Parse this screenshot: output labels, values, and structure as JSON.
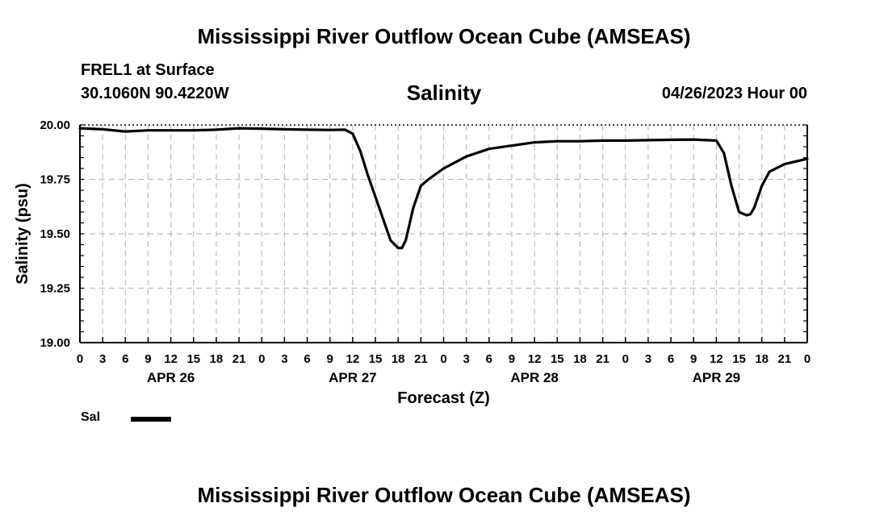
{
  "header": {
    "title": "Mississippi River Outflow Ocean Cube (AMSEAS)",
    "station": "FREL1 at Surface",
    "coords": "30.1060N  90.4220W",
    "subtitle": "Salinity",
    "datetime": "04/26/2023 Hour 00"
  },
  "footer": {
    "title": "Mississippi River Outflow Ocean Cube (AMSEAS)"
  },
  "chart_data": {
    "type": "line",
    "title": "Salinity",
    "xlabel": "Forecast (Z)",
    "ylabel": "Salinity (psu)",
    "ylim": [
      19.0,
      20.0
    ],
    "yticks": [
      "19.00",
      "19.25",
      "19.50",
      "19.75",
      "20.00"
    ],
    "x_hour_range": [
      0,
      96
    ],
    "xtick_labels": [
      "0",
      "3",
      "6",
      "9",
      "12",
      "15",
      "18",
      "21",
      "0",
      "3",
      "6",
      "9",
      "12",
      "15",
      "18",
      "21",
      "0",
      "3",
      "6",
      "9",
      "12",
      "15",
      "18",
      "21",
      "0",
      "3",
      "6",
      "9",
      "12",
      "15",
      "18",
      "21",
      "0"
    ],
    "day_labels": [
      {
        "label": "APR 26",
        "hour": 12
      },
      {
        "label": "APR 27",
        "hour": 36
      },
      {
        "label": "APR 28",
        "hour": 60
      },
      {
        "label": "APR 29",
        "hour": 84
      }
    ],
    "grid": true,
    "legend": "bottom-left",
    "series": [
      {
        "name": "Sal",
        "color": "#000000",
        "x": [
          0,
          3,
          6,
          9,
          12,
          15,
          18,
          21,
          24,
          27,
          30,
          33,
          35,
          36,
          37,
          38,
          39,
          40,
          41,
          42,
          42.5,
          43,
          44,
          45,
          46,
          48,
          51,
          54,
          57,
          60,
          63,
          66,
          69,
          72,
          75,
          78,
          81,
          84,
          85,
          86,
          87,
          88,
          88.5,
          89,
          90,
          91,
          93,
          96
        ],
        "y": [
          19.985,
          19.98,
          19.97,
          19.975,
          19.975,
          19.975,
          19.978,
          19.985,
          19.983,
          19.98,
          19.978,
          19.977,
          19.978,
          19.96,
          19.88,
          19.77,
          19.67,
          19.57,
          19.47,
          19.435,
          19.435,
          19.47,
          19.62,
          19.72,
          19.75,
          19.8,
          19.855,
          19.89,
          19.905,
          19.92,
          19.925,
          19.925,
          19.928,
          19.928,
          19.93,
          19.932,
          19.933,
          19.928,
          19.87,
          19.72,
          19.6,
          19.585,
          19.59,
          19.62,
          19.72,
          19.785,
          19.82,
          19.845
        ]
      }
    ]
  }
}
